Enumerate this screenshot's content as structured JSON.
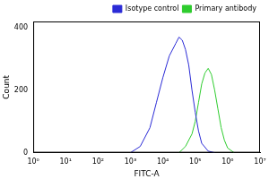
{
  "chart_data": {
    "type": "line",
    "x_label": "FITC-A",
    "y_label": "Count",
    "log": "x",
    "grid": false,
    "legend": "top-right",
    "xlim": [
      1,
      10000000
    ],
    "xticks": [
      {
        "value": 1,
        "label": "10⁰"
      },
      {
        "value": 10,
        "label": "10¹"
      },
      {
        "value": 100,
        "label": "10²"
      },
      {
        "value": 1000,
        "label": "10³"
      },
      {
        "value": 10000,
        "label": "10⁴"
      },
      {
        "value": 100000,
        "label": "10⁵"
      },
      {
        "value": 1000000,
        "label": "10⁶"
      },
      {
        "value": 10000000,
        "label": "10⁷"
      }
    ],
    "ylim": [
      0,
      420
    ],
    "yticks": [
      0,
      200,
      400
    ],
    "series": [
      {
        "name": "Isotype control",
        "color": "#2b2bd6",
        "x": [
          1000,
          2000,
          4000,
          6310,
          10000,
          15850,
          25120,
          31620,
          39810,
          50120,
          63100,
          79430,
          100000,
          125900,
          158500,
          251200,
          398100
        ],
        "values": [
          0,
          20,
          80,
          160,
          240,
          310,
          350,
          370,
          360,
          330,
          280,
          200,
          130,
          70,
          30,
          5,
          0
        ]
      },
      {
        "name": "Primary antibody",
        "color": "#2ecc2e",
        "x": [
          31600,
          50100,
          79400,
          100000,
          125900,
          158500,
          199500,
          251200,
          316200,
          398100,
          501200,
          631000,
          794300,
          1000000,
          1584900
        ],
        "values": [
          0,
          20,
          60,
          100,
          160,
          220,
          255,
          270,
          250,
          200,
          140,
          80,
          40,
          15,
          0
        ]
      }
    ]
  }
}
